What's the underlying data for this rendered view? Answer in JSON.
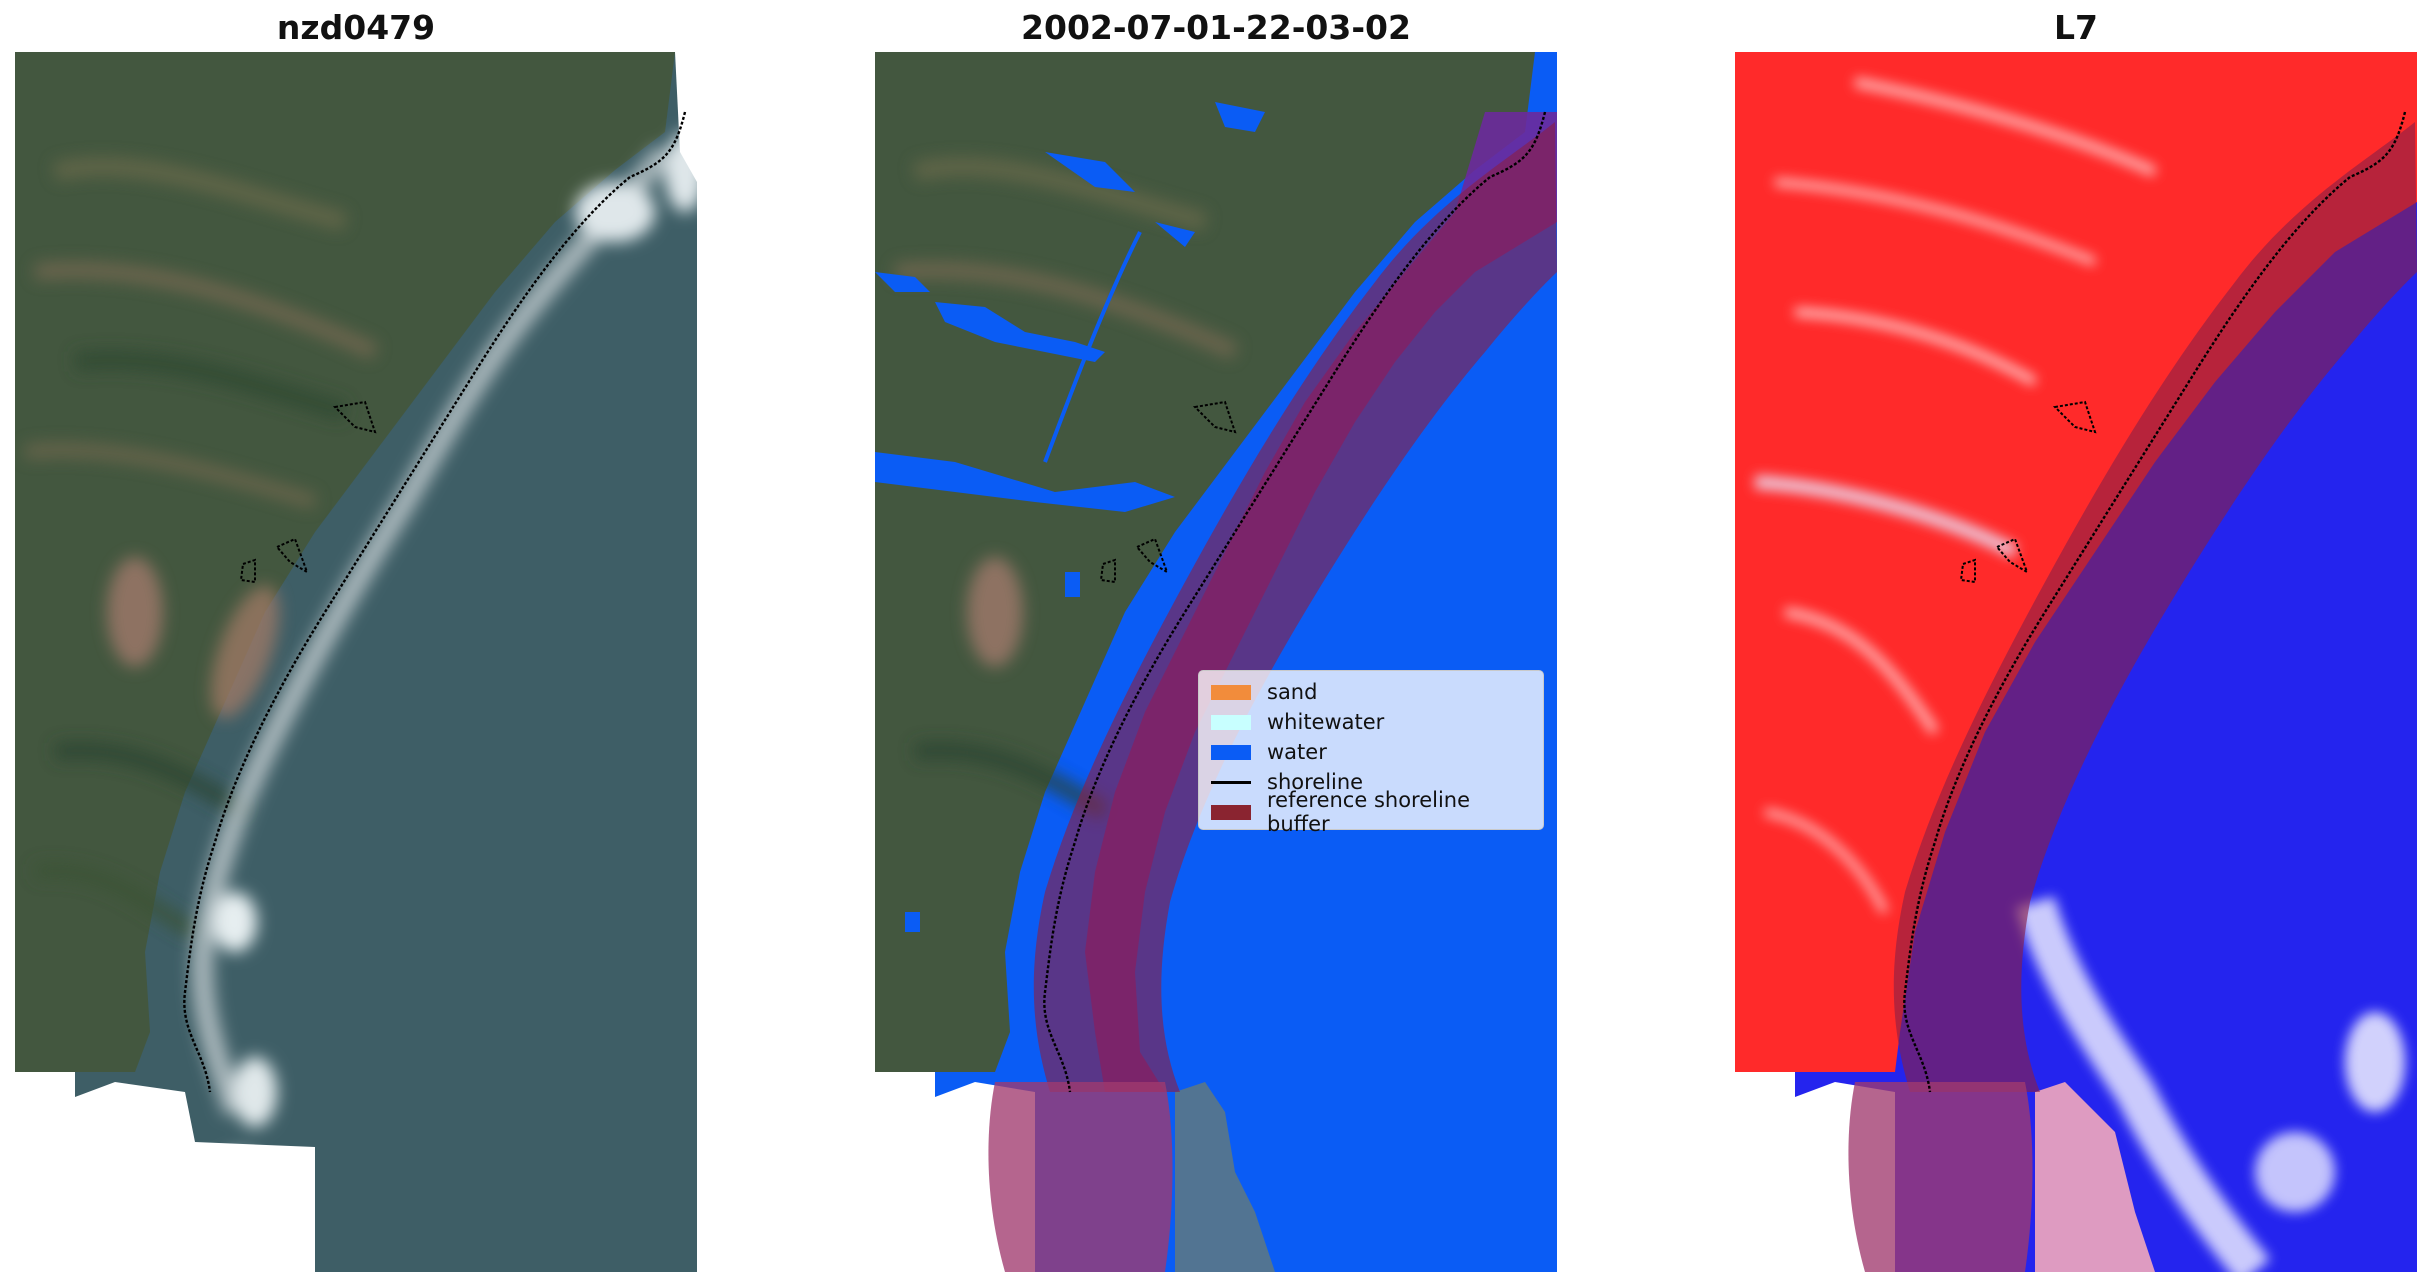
{
  "panels": {
    "left_title": "nzd0479",
    "middle_title": "2002-07-01-22-03-02",
    "right_title": "L7"
  },
  "legend": {
    "items": [
      {
        "label": "sand",
        "color": "#f28c3b",
        "type": "patch"
      },
      {
        "label": "whitewater",
        "color": "#c8ffff",
        "type": "patch"
      },
      {
        "label": "water",
        "color": "#0a5cf5",
        "type": "patch"
      },
      {
        "label": "shoreline",
        "color": "#000000",
        "type": "line"
      },
      {
        "label": "reference shoreline buffer",
        "color": "#8a2430",
        "type": "patch"
      }
    ]
  },
  "colors": {
    "land": "#43573f",
    "sea": "#3e5e66",
    "water_class": "#0a5cf5",
    "buffer": "#8a1f45",
    "index_land": "#ff2a2a",
    "index_water": "#2424ee"
  }
}
